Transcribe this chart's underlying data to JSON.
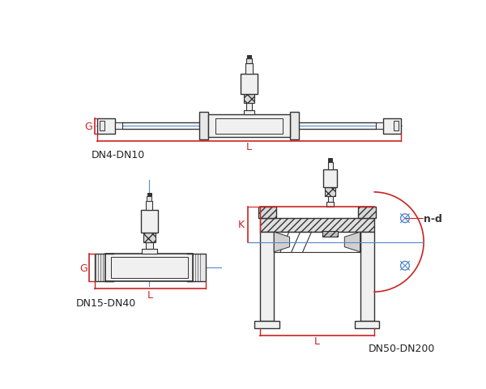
{
  "bg_color": "#ffffff",
  "line_color": "#555555",
  "dark_color": "#333333",
  "red_color": "#cc2222",
  "blue_color": "#5588cc",
  "label_color": "#222222",
  "hatch_color": "#666666",
  "diagram1_label": "DN4-DN10",
  "diagram2_label": "DN15-DN40",
  "diagram3_label": "DN50-DN200",
  "G_label": "G",
  "L_label": "L",
  "K_label": "K",
  "nd_label": "n-d"
}
